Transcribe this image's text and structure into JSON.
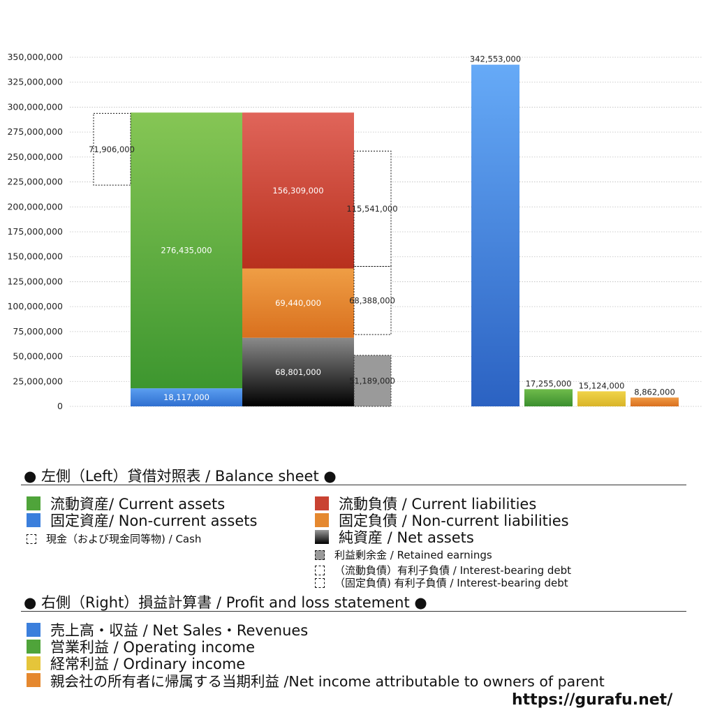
{
  "chart_data": {
    "type": "bar",
    "yaxis": {
      "min": 0,
      "max": 350000000,
      "step": 25000000,
      "tick_labels": [
        "0",
        "25,000,000",
        "50,000,000",
        "75,000,000",
        "100,000,000",
        "125,000,000",
        "150,000,000",
        "175,000,000",
        "200,000,000",
        "225,000,000",
        "250,000,000",
        "275,000,000",
        "300,000,000",
        "325,000,000",
        "350,000,000"
      ]
    },
    "grid": true,
    "balance_sheet": {
      "assets": [
        {
          "name": "Non-current assets",
          "value": 18117000,
          "label": "18,117,000",
          "color_top": "#5b9ef0",
          "color_bottom": "#2f6fd0"
        },
        {
          "name": "Current assets",
          "value": 276435000,
          "label": "276,435,000",
          "color_top": "#86c655",
          "color_bottom": "#3d962f"
        }
      ],
      "cash": {
        "start": 221800000,
        "value": 71906000,
        "label": "71,906,000"
      },
      "liabilities": [
        {
          "name": "Net assets",
          "value": 68801000,
          "label": "68,801,000",
          "color_top": "#8a8a8a",
          "color_bottom": "#000000"
        },
        {
          "name": "Non-current liabilities",
          "value": 69440000,
          "label": "69,440,000",
          "color_top": "#ef9e45",
          "color_bottom": "#d9701e"
        },
        {
          "name": "Current liabilities",
          "value": 156309000,
          "label": "156,309,000",
          "color_top": "#e0655a",
          "color_bottom": "#b8301d"
        }
      ],
      "retained_earnings": {
        "start": 0,
        "value": 51189000,
        "label": "51,189,000"
      },
      "interest_bearing_noncurrent": {
        "start": 72000000,
        "value": 68388000,
        "label": "68,388,000"
      },
      "interest_bearing_current": {
        "start": 140388000,
        "value": 115541000,
        "label": "115,541,000"
      }
    },
    "profit_loss": [
      {
        "name": "Net Sales・Revenues",
        "value": 342553000,
        "label": "342,553,000",
        "color_top": "#66aaf7",
        "color_bottom": "#2b62c2"
      },
      {
        "name": "Operating income",
        "value": 17255000,
        "label": "17,255,000",
        "color_top": "#6fbb4b",
        "color_bottom": "#3b8f2e"
      },
      {
        "name": "Ordinary income",
        "value": 15124000,
        "label": "15,124,000",
        "color_top": "#f0d44a",
        "color_bottom": "#d9b428"
      },
      {
        "name": "Net income attributable to owners of parent",
        "value": 8862000,
        "label": "8,862,000",
        "color_top": "#f09a45",
        "color_bottom": "#d9701e"
      }
    ]
  },
  "legend": {
    "left_title": "● 左側（Left）貸借対照表 / Balance sheet ●",
    "left_items": [
      {
        "text": "流動資産/ Current assets",
        "color": "#4fa43a"
      },
      {
        "text": "固定資産/ Non-current assets",
        "color": "#3b7fdc"
      },
      {
        "text": "現金（および現金同等物) / Cash"
      },
      {
        "text": "流動負債 /  Current liabilities",
        "color": "#c94232"
      },
      {
        "text": "固定負債 / Non-current liabilities",
        "color": "#e5882f"
      },
      {
        "text": "純資産 / Net assets",
        "color": "#333333"
      },
      {
        "text": "利益剰余金 / Retained earnings",
        "color": "#9a9a9a"
      },
      {
        "text": "（流動負債）有利子負債 / Interest-bearing debt"
      },
      {
        "text": "（固定負債) 有利子負債 / Interest-bearing debt"
      }
    ],
    "right_title": "● 右側（Right）損益計算書 / Profit and loss statement ●",
    "right_items": [
      {
        "text": "売上高・収益 / Net Sales・Revenues",
        "color": "#3b7fdc"
      },
      {
        "text": "営業利益 / Operating income",
        "color": "#4fa43a"
      },
      {
        "text": "経常利益 / Ordinary income",
        "color": "#e5c53a"
      },
      {
        "text": "親会社の所有者に帰属する当期利益 /Net income attributable to owners of parent",
        "color": "#e5882f"
      }
    ]
  },
  "footer": {
    "url": "https://gurafu.net/"
  }
}
